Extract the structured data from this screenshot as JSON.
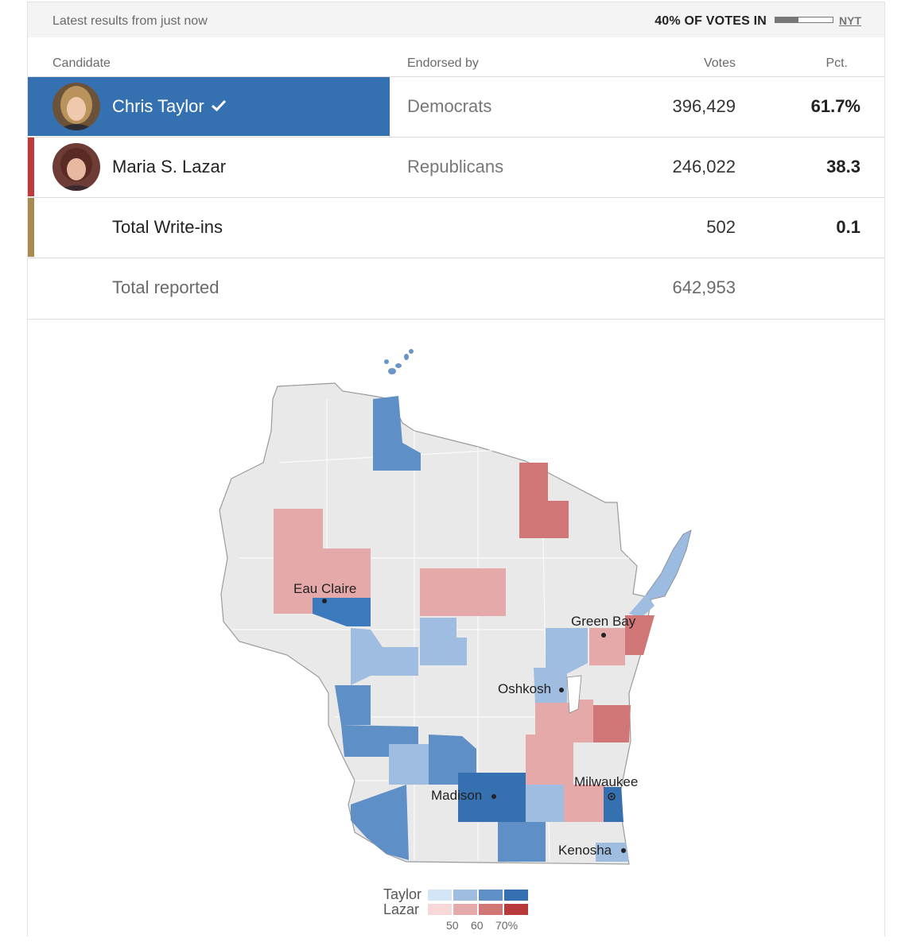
{
  "header": {
    "latest": "Latest results from just now",
    "votes_in": "40% OF VOTES IN",
    "votes_in_fraction": 0.4,
    "source": "NYT"
  },
  "columns": {
    "candidate": "Candidate",
    "endorsed": "Endorsed by",
    "votes": "Votes",
    "pct": "Pct."
  },
  "colors": {
    "dem": "#3571b0",
    "rep": "#c0393b",
    "other": "#a88b4e"
  },
  "candidates": [
    {
      "name": "Chris Taylor",
      "party": "Democrats",
      "votes": "396,429",
      "pct": "61.7%",
      "winner": true
    },
    {
      "name": "Maria S. Lazar",
      "party": "Republicans",
      "votes": "246,022",
      "pct": "38.3",
      "winner": false
    },
    {
      "name": "Total Write-ins",
      "party": "",
      "votes": "502",
      "pct": "0.1",
      "winner": false
    }
  ],
  "total": {
    "label": "Total reported",
    "votes": "642,953"
  },
  "map": {
    "cities": [
      "Eau Claire",
      "Green Bay",
      "Oshkosh",
      "Milwaukee",
      "Madison",
      "Kenosha"
    ],
    "legend": {
      "taylor": "Taylor",
      "lazar": "Lazar",
      "ticks": [
        "50",
        "60",
        "70%"
      ]
    }
  }
}
